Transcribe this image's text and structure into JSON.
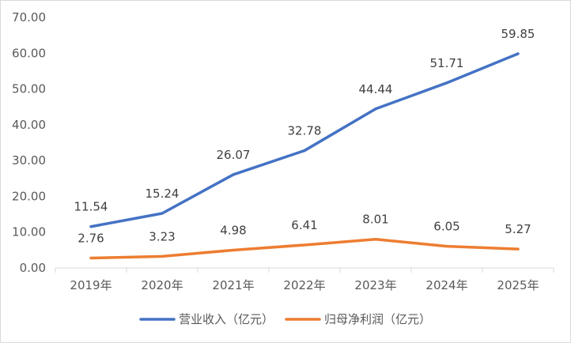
{
  "chart_data": {
    "type": "line",
    "title": "",
    "xlabel": "",
    "ylabel": "",
    "categories": [
      "2019年",
      "2020年",
      "2021年",
      "2022年",
      "2023年",
      "2024年",
      "2025年"
    ],
    "ylim": [
      0,
      70
    ],
    "yticks": [
      "0.00",
      "10.00",
      "20.00",
      "30.00",
      "40.00",
      "50.00",
      "60.00",
      "70.00"
    ],
    "grid": false,
    "legend_position": "bottom",
    "series": [
      {
        "name": "营业收入（亿元）",
        "color": "#4472C4",
        "values": [
          11.54,
          15.24,
          26.07,
          32.78,
          44.44,
          51.71,
          59.85
        ],
        "labels": [
          "11.54",
          "15.24",
          "26.07",
          "32.78",
          "44.44",
          "51.71",
          "59.85"
        ]
      },
      {
        "name": "归母净利润（亿元）",
        "color": "#ED7D31",
        "values": [
          2.76,
          3.23,
          4.98,
          6.41,
          8.01,
          6.05,
          5.27
        ],
        "labels": [
          "2.76",
          "3.23",
          "4.98",
          "6.41",
          "8.01",
          "6.05",
          "5.27"
        ]
      }
    ]
  }
}
